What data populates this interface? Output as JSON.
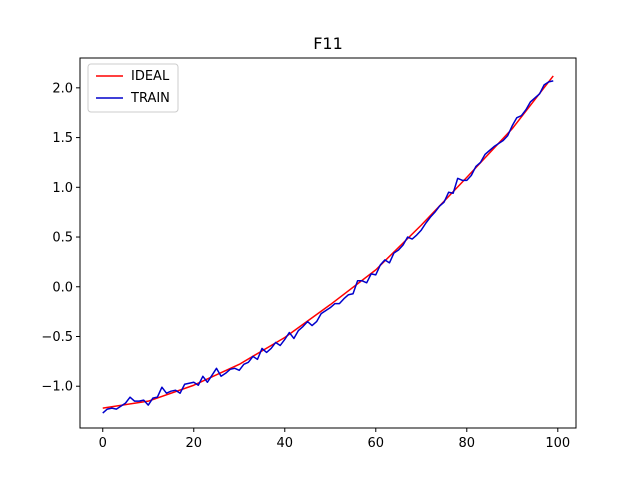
{
  "chart_data": {
    "type": "line",
    "title": "F11",
    "xlabel": "",
    "ylabel": "",
    "xlim": [
      -5,
      104
    ],
    "ylim": [
      -1.42,
      2.3
    ],
    "xticks": [
      0,
      20,
      40,
      60,
      80,
      100
    ],
    "xtick_labels": [
      "0",
      "20",
      "40",
      "60",
      "80",
      "100"
    ],
    "yticks": [
      -1.0,
      -0.5,
      0.0,
      0.5,
      1.0,
      1.5,
      2.0
    ],
    "ytick_labels": [
      "−1.0",
      "−0.5",
      "0.0",
      "0.5",
      "1.0",
      "1.5",
      "2.0"
    ],
    "grid": false,
    "legend_position": "top-left",
    "series": [
      {
        "name": "IDEAL",
        "color": "#ff0000",
        "x": [
          0,
          10,
          20,
          30,
          40,
          50,
          60,
          70,
          80,
          90,
          99
        ],
        "y": [
          -1.22,
          -1.15,
          -0.99,
          -0.78,
          -0.51,
          -0.18,
          0.17,
          0.62,
          1.1,
          1.59,
          2.12
        ]
      },
      {
        "name": "TRAIN",
        "color": "#0000cc",
        "x": [
          0,
          1,
          2,
          3,
          4,
          5,
          6,
          7,
          8,
          9,
          10,
          11,
          12,
          13,
          14,
          15,
          16,
          17,
          18,
          19,
          20,
          21,
          22,
          23,
          24,
          25,
          26,
          27,
          28,
          29,
          30,
          31,
          32,
          33,
          34,
          35,
          36,
          37,
          38,
          39,
          40,
          41,
          42,
          43,
          44,
          45,
          46,
          47,
          48,
          49,
          50,
          51,
          52,
          53,
          54,
          55,
          56,
          57,
          58,
          59,
          60,
          61,
          62,
          63,
          64,
          65,
          66,
          67,
          68,
          69,
          70,
          71,
          72,
          73,
          74,
          75,
          76,
          77,
          78,
          79,
          80,
          81,
          82,
          83,
          84,
          85,
          86,
          87,
          88,
          89,
          90,
          91,
          92,
          93,
          94,
          95,
          96,
          97,
          98,
          99
        ],
        "y": [
          -1.27,
          -1.23,
          -1.22,
          -1.23,
          -1.2,
          -1.17,
          -1.11,
          -1.15,
          -1.15,
          -1.14,
          -1.19,
          -1.12,
          -1.11,
          -1.01,
          -1.07,
          -1.05,
          -1.04,
          -1.07,
          -0.98,
          -0.97,
          -0.96,
          -0.99,
          -0.9,
          -0.96,
          -0.89,
          -0.82,
          -0.9,
          -0.87,
          -0.83,
          -0.82,
          -0.84,
          -0.78,
          -0.76,
          -0.7,
          -0.73,
          -0.62,
          -0.66,
          -0.62,
          -0.56,
          -0.59,
          -0.53,
          -0.46,
          -0.52,
          -0.44,
          -0.4,
          -0.35,
          -0.39,
          -0.35,
          -0.27,
          -0.24,
          -0.21,
          -0.17,
          -0.17,
          -0.12,
          -0.08,
          -0.07,
          0.06,
          0.06,
          0.04,
          0.13,
          0.12,
          0.22,
          0.27,
          0.24,
          0.34,
          0.37,
          0.42,
          0.5,
          0.48,
          0.52,
          0.57,
          0.64,
          0.7,
          0.75,
          0.81,
          0.85,
          0.95,
          0.94,
          1.09,
          1.07,
          1.07,
          1.12,
          1.21,
          1.25,
          1.33,
          1.37,
          1.41,
          1.44,
          1.47,
          1.52,
          1.62,
          1.7,
          1.72,
          1.78,
          1.86,
          1.9,
          1.94,
          2.03,
          2.06,
          2.07
        ]
      }
    ]
  }
}
